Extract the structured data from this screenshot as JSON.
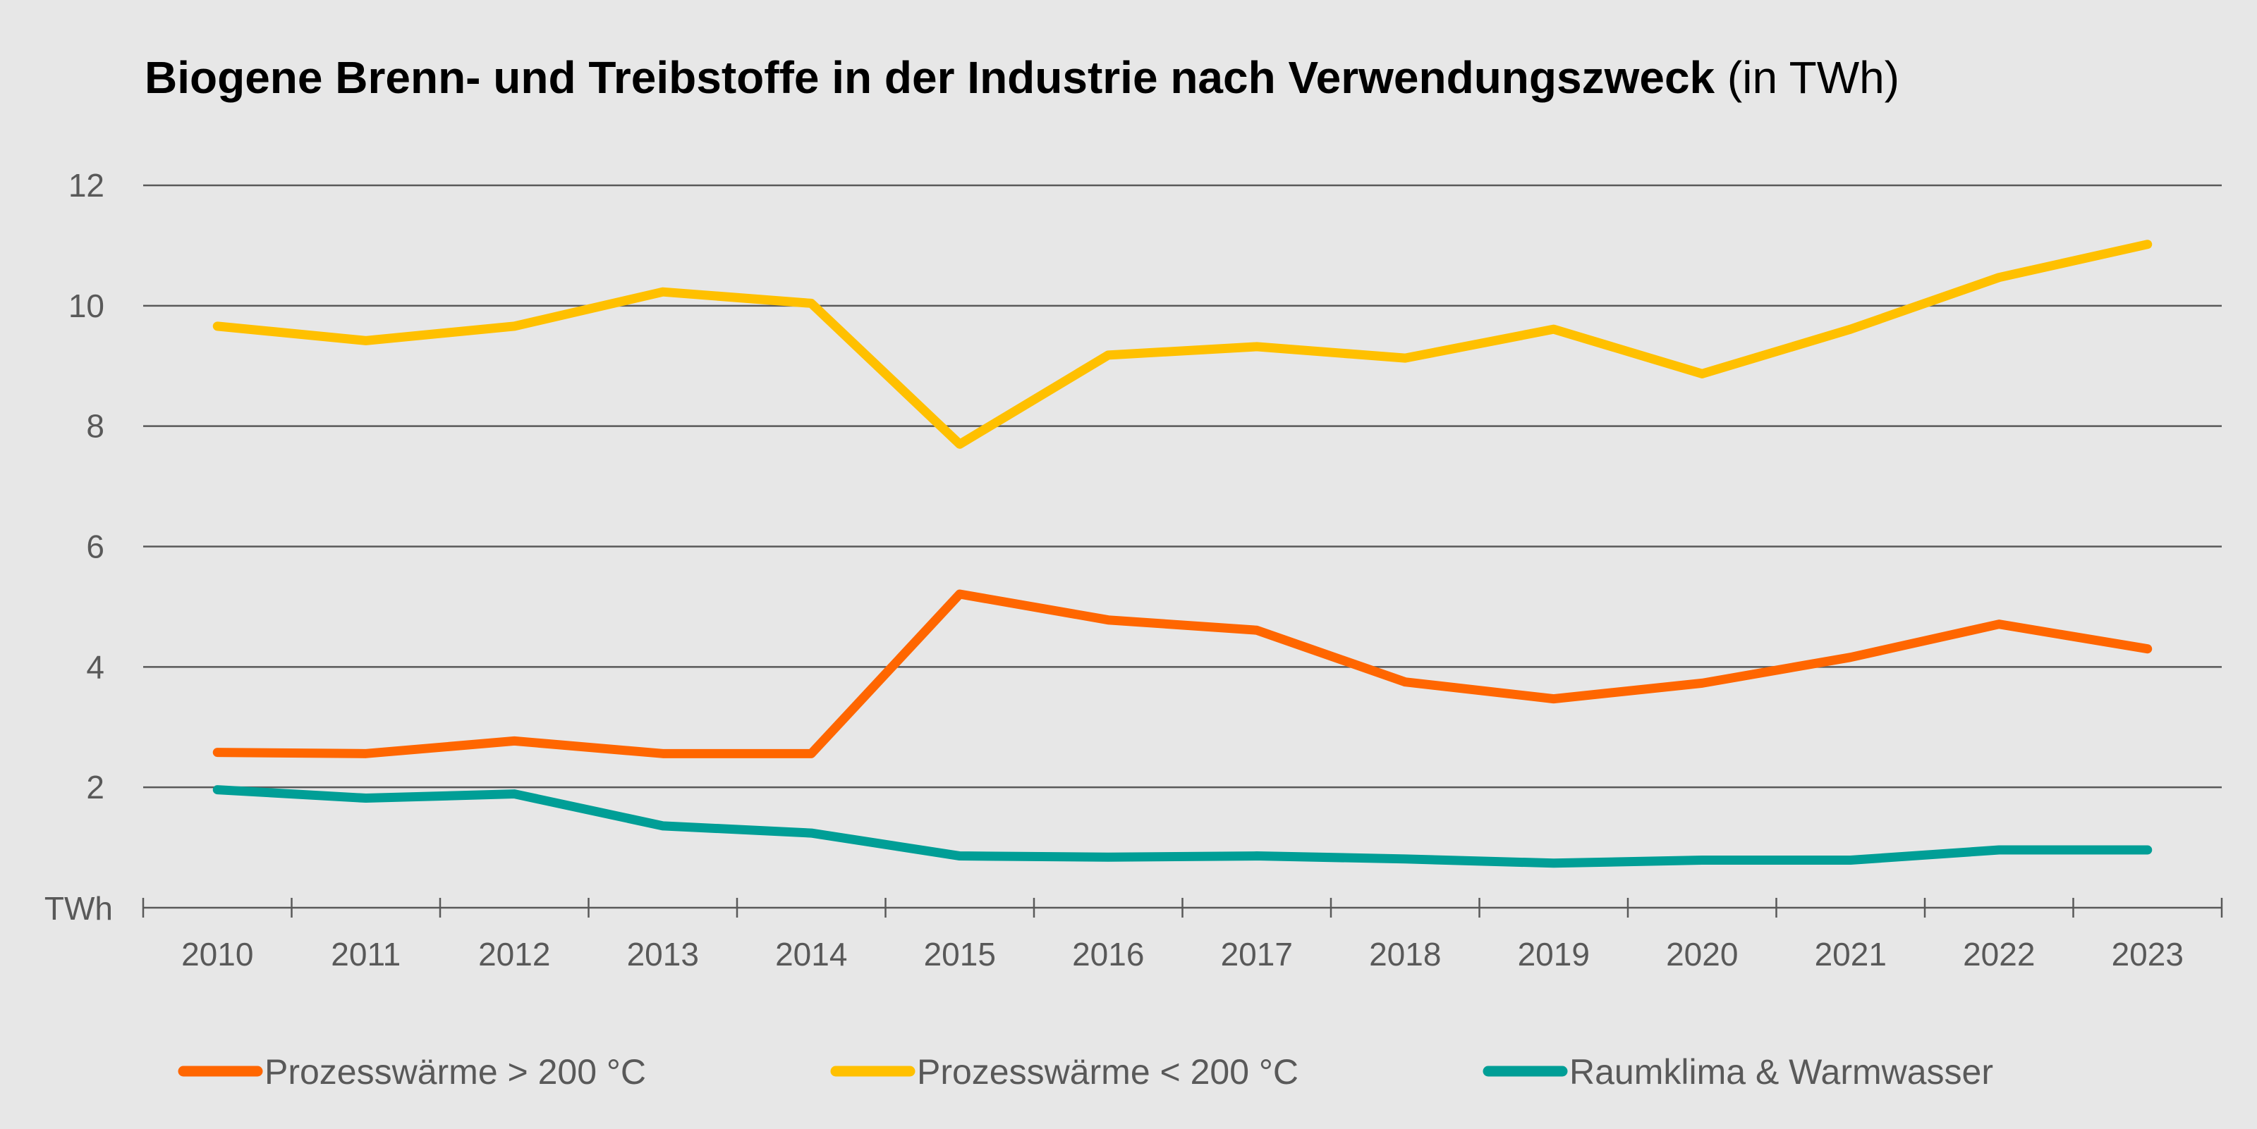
{
  "chart_data": {
    "type": "line",
    "title_bold": "Biogene Brenn- und Treibstoffe in der Industrie nach Verwendungszweck",
    "title_unit": " (in TWh)",
    "ylabel_tick": "TWh",
    "categories": [
      "2010",
      "2011",
      "2012",
      "2013",
      "2014",
      "2015",
      "2016",
      "2017",
      "2018",
      "2019",
      "2020",
      "2021",
      "2022",
      "2023"
    ],
    "yticks": [
      2,
      4,
      6,
      8,
      10,
      12
    ],
    "ylim": [
      0,
      12
    ],
    "grid": true,
    "legend_position": "bottom",
    "series": [
      {
        "name": "Prozesswärme > 200 °C",
        "color": "#ff6600",
        "values": [
          2.58,
          2.56,
          2.77,
          2.56,
          2.56,
          5.21,
          4.78,
          4.61,
          3.75,
          3.47,
          3.73,
          4.16,
          4.71,
          4.3
        ]
      },
      {
        "name": "Prozesswärme < 200 °C",
        "color": "#ffc000",
        "values": [
          9.66,
          9.42,
          9.66,
          10.23,
          10.04,
          7.7,
          9.18,
          9.32,
          9.13,
          9.61,
          8.87,
          9.61,
          10.47,
          11.02
        ]
      },
      {
        "name": "Raumklima & Warmwasser",
        "color": "#009e96",
        "values": [
          1.96,
          1.82,
          1.89,
          1.36,
          1.24,
          0.86,
          0.84,
          0.86,
          0.81,
          0.74,
          0.79,
          0.79,
          0.96,
          0.96
        ]
      }
    ]
  }
}
